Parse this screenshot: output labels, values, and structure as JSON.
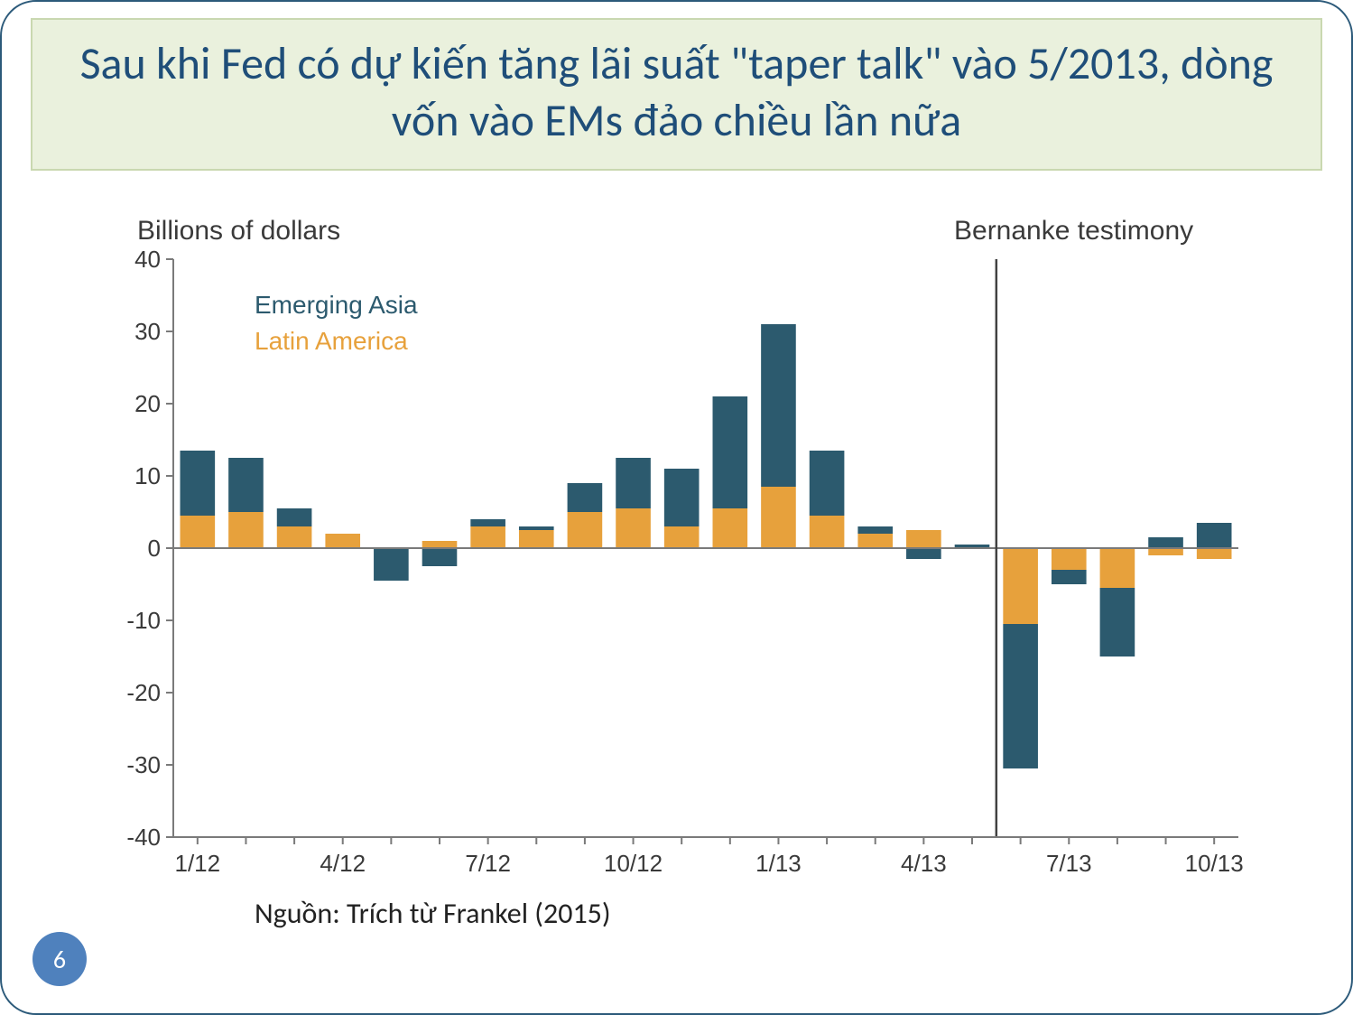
{
  "slide": {
    "title": "Sau khi Fed có dự kiến tăng lãi suất \"taper talk\" vào 5/2013, dòng vốn vào EMs đảo chiều lần nữa",
    "title_color": "#1f4e79",
    "title_bg": "#eaf1dd",
    "title_border": "#c9d8b0",
    "border_color": "#2c5a7a",
    "page_number": "6",
    "page_badge_bg": "#4f81bd",
    "page_badge_fg": "#ffffff",
    "source": "Nguồn: Trích từ  Frankel (2015)"
  },
  "chart": {
    "type": "stacked-bar",
    "y_title": "Billions of dollars",
    "annotation": "Bernanke testimony",
    "y_title_fontsize": 30,
    "axis_fontsize": 26,
    "legend_fontsize": 28,
    "background_color": "#ffffff",
    "axis_color": "#7a7a7a",
    "axis_width": 2,
    "vline_color": "#424242",
    "vline_width": 2.5,
    "ylim": [
      -40,
      40
    ],
    "yticks": [
      -40,
      -30,
      -20,
      -10,
      0,
      10,
      20,
      30,
      40
    ],
    "x_tick_positions": [
      0,
      3,
      6,
      9,
      12,
      15,
      18,
      21
    ],
    "x_tick_labels": [
      "1/12",
      "4/12",
      "7/12",
      "10/12",
      "1/13",
      "4/13",
      "7/13",
      "10/13"
    ],
    "legend": [
      {
        "label": "Emerging Asia",
        "color": "#2c5a6e"
      },
      {
        "label": "Latin America",
        "color": "#e7a13c"
      }
    ],
    "series_colors": {
      "asia": "#2c5a6e",
      "latam": "#e7a13c"
    },
    "bar_width": 0.72,
    "annotation_vline_x": 16.5,
    "data": [
      {
        "x": 0,
        "asia": 9.0,
        "latam": 4.5
      },
      {
        "x": 1,
        "asia": 7.5,
        "latam": 5.0
      },
      {
        "x": 2,
        "asia": 2.5,
        "latam": 3.0
      },
      {
        "x": 3,
        "asia": 0.0,
        "latam": 2.0
      },
      {
        "x": 4,
        "asia": -4.5,
        "latam": 0.0
      },
      {
        "x": 5,
        "asia": -2.5,
        "latam": 1.0
      },
      {
        "x": 6,
        "asia": 1.0,
        "latam": 3.0
      },
      {
        "x": 7,
        "asia": 0.5,
        "latam": 2.5
      },
      {
        "x": 8,
        "asia": 4.0,
        "latam": 5.0
      },
      {
        "x": 9,
        "asia": 7.0,
        "latam": 5.5
      },
      {
        "x": 10,
        "asia": 8.0,
        "latam": 3.0
      },
      {
        "x": 11,
        "asia": 15.5,
        "latam": 5.5
      },
      {
        "x": 12,
        "asia": 22.5,
        "latam": 8.5
      },
      {
        "x": 13,
        "asia": 9.0,
        "latam": 4.5
      },
      {
        "x": 14,
        "asia": 1.0,
        "latam": 2.0
      },
      {
        "x": 15,
        "asia": -1.5,
        "latam": 2.5
      },
      {
        "x": 16,
        "asia": 0.5,
        "latam": 0.0
      },
      {
        "x": 17,
        "asia": -20.0,
        "latam": -10.5
      },
      {
        "x": 18,
        "asia": -2.0,
        "latam": -3.0
      },
      {
        "x": 19,
        "asia": -9.5,
        "latam": -5.5
      },
      {
        "x": 20,
        "asia": 1.5,
        "latam": -1.0
      },
      {
        "x": 21,
        "asia": 3.5,
        "latam": -1.5
      }
    ]
  }
}
